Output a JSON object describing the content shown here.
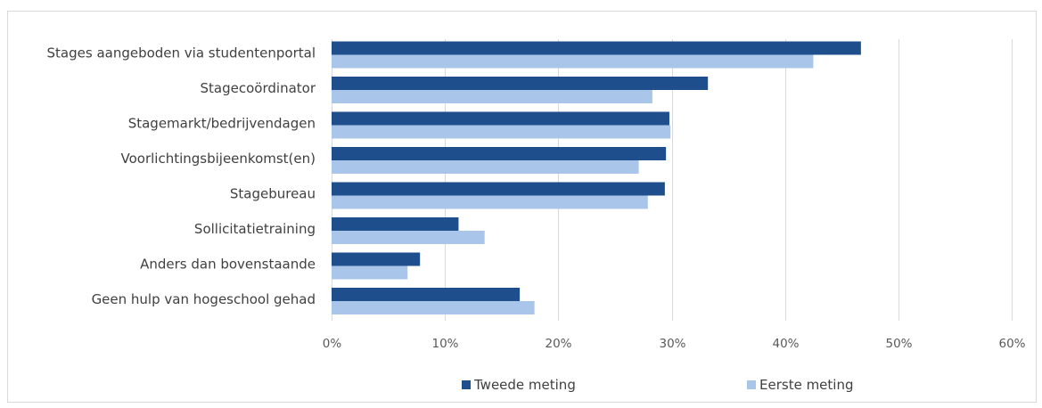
{
  "chart_data": {
    "type": "bar",
    "orientation": "horizontal",
    "categories": [
      "Stages aangeboden via studentenportal",
      "Stagecoördinator",
      "Stagemarkt/bedrijvendagen",
      "Voorlichtingsbijeenkomst(en)",
      "Stagebureau",
      "Sollicitatietraining",
      "Anders dan bovenstaande",
      "Geen hulp van hogeschool gehad"
    ],
    "series": [
      {
        "name": "Tweede meting",
        "color": "#1f4e8c",
        "values": [
          46.7,
          33.2,
          29.8,
          29.5,
          29.4,
          11.2,
          7.8,
          16.6
        ]
      },
      {
        "name": "Eerste meting",
        "color": "#a9c6ea",
        "values": [
          42.5,
          28.3,
          29.9,
          27.1,
          27.9,
          13.5,
          6.7,
          17.9
        ]
      }
    ],
    "xlim": [
      0,
      60
    ],
    "xticks": [
      0,
      10,
      20,
      30,
      40,
      50,
      60
    ],
    "tick_suffix": "%",
    "gridlines": true,
    "legend_position": "bottom"
  }
}
